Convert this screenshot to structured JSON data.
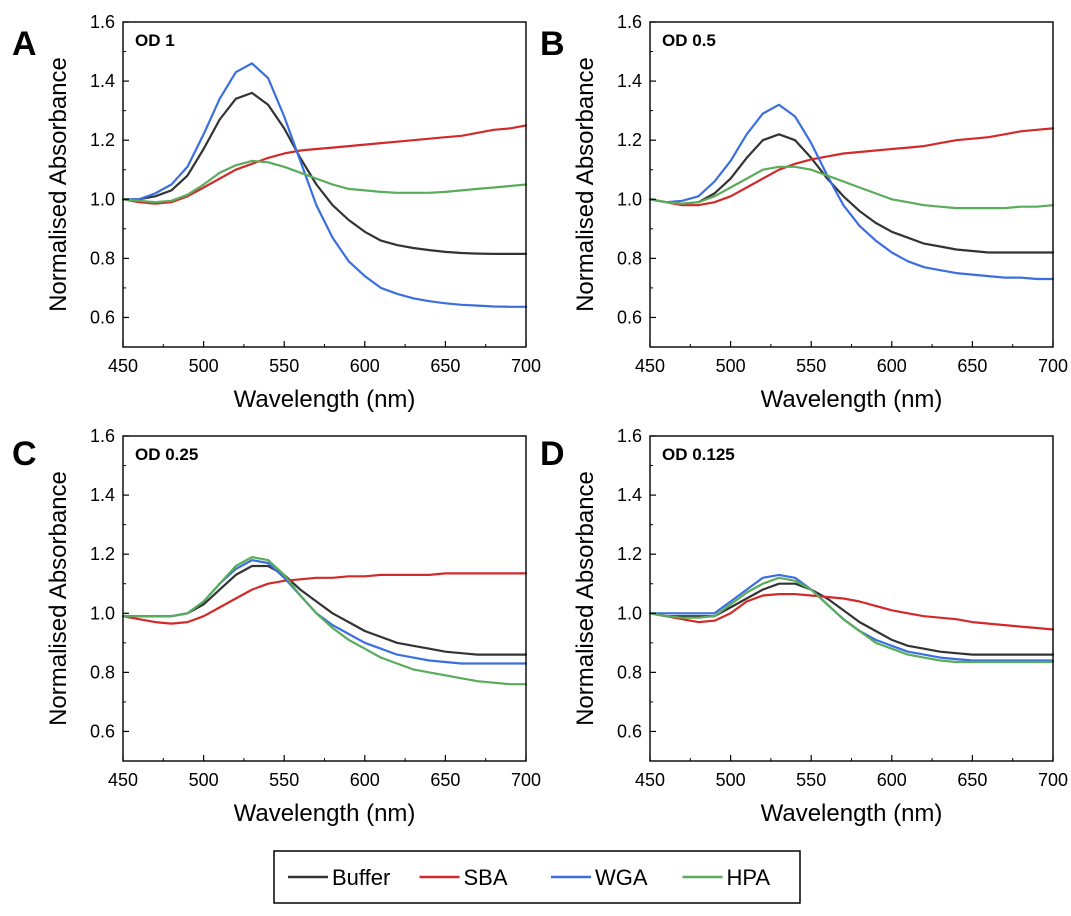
{
  "chart_data": [
    {
      "type": "line",
      "panel": "A",
      "annotation": "OD 1",
      "xlabel": "Wavelength (nm)",
      "ylabel": "Normalised Absorbance",
      "xlim": [
        450,
        700
      ],
      "ylim": [
        0.5,
        1.6
      ],
      "xticks": [
        450,
        500,
        550,
        600,
        650,
        700
      ],
      "yticks": [
        0.6,
        0.8,
        1.0,
        1.2,
        1.4,
        1.6
      ],
      "x": [
        450,
        460,
        470,
        480,
        490,
        500,
        510,
        520,
        530,
        540,
        550,
        560,
        570,
        580,
        590,
        600,
        610,
        620,
        630,
        640,
        650,
        660,
        670,
        680,
        690,
        700
      ],
      "series": [
        {
          "name": "Buffer",
          "values": [
            1.0,
            1.0,
            1.01,
            1.03,
            1.08,
            1.17,
            1.27,
            1.34,
            1.36,
            1.32,
            1.24,
            1.14,
            1.05,
            0.98,
            0.93,
            0.89,
            0.86,
            0.845,
            0.835,
            0.828,
            0.822,
            0.818,
            0.816,
            0.815,
            0.815,
            0.815
          ]
        },
        {
          "name": "SBA",
          "values": [
            1.0,
            0.99,
            0.985,
            0.99,
            1.01,
            1.04,
            1.07,
            1.1,
            1.12,
            1.14,
            1.155,
            1.165,
            1.17,
            1.175,
            1.18,
            1.185,
            1.19,
            1.195,
            1.2,
            1.205,
            1.21,
            1.215,
            1.225,
            1.235,
            1.24,
            1.25
          ]
        },
        {
          "name": "WGA",
          "values": [
            1.0,
            1.0,
            1.02,
            1.05,
            1.11,
            1.22,
            1.34,
            1.43,
            1.46,
            1.41,
            1.28,
            1.13,
            0.98,
            0.87,
            0.79,
            0.74,
            0.7,
            0.68,
            0.665,
            0.655,
            0.648,
            0.643,
            0.64,
            0.637,
            0.636,
            0.636
          ]
        },
        {
          "name": "HPA",
          "values": [
            1.0,
            0.995,
            0.99,
            0.995,
            1.015,
            1.05,
            1.09,
            1.115,
            1.13,
            1.125,
            1.11,
            1.09,
            1.07,
            1.05,
            1.035,
            1.03,
            1.025,
            1.022,
            1.022,
            1.022,
            1.025,
            1.03,
            1.035,
            1.04,
            1.045,
            1.05
          ]
        }
      ]
    },
    {
      "type": "line",
      "panel": "B",
      "annotation": "OD 0.5",
      "xlabel": "Wavelength (nm)",
      "ylabel": "Normalised Absorbance",
      "xlim": [
        450,
        700
      ],
      "ylim": [
        0.5,
        1.6
      ],
      "xticks": [
        450,
        500,
        550,
        600,
        650,
        700
      ],
      "yticks": [
        0.6,
        0.8,
        1.0,
        1.2,
        1.4,
        1.6
      ],
      "x": [
        450,
        460,
        470,
        480,
        490,
        500,
        510,
        520,
        530,
        540,
        550,
        560,
        570,
        580,
        590,
        600,
        610,
        620,
        630,
        640,
        650,
        660,
        670,
        680,
        690,
        700
      ],
      "series": [
        {
          "name": "Buffer",
          "values": [
            1.0,
            0.99,
            0.985,
            0.99,
            1.02,
            1.07,
            1.14,
            1.2,
            1.22,
            1.2,
            1.14,
            1.07,
            1.01,
            0.96,
            0.92,
            0.89,
            0.87,
            0.85,
            0.84,
            0.83,
            0.825,
            0.82,
            0.82,
            0.82,
            0.82,
            0.82
          ]
        },
        {
          "name": "SBA",
          "values": [
            1.0,
            0.99,
            0.98,
            0.98,
            0.99,
            1.01,
            1.04,
            1.07,
            1.1,
            1.12,
            1.135,
            1.145,
            1.155,
            1.16,
            1.165,
            1.17,
            1.175,
            1.18,
            1.19,
            1.2,
            1.205,
            1.21,
            1.22,
            1.23,
            1.235,
            1.24
          ]
        },
        {
          "name": "WGA",
          "values": [
            1.0,
            0.99,
            0.995,
            1.01,
            1.06,
            1.13,
            1.22,
            1.29,
            1.32,
            1.28,
            1.19,
            1.08,
            0.98,
            0.91,
            0.86,
            0.82,
            0.79,
            0.77,
            0.76,
            0.75,
            0.745,
            0.74,
            0.735,
            0.735,
            0.73,
            0.73
          ]
        },
        {
          "name": "HPA",
          "values": [
            1.0,
            0.99,
            0.985,
            0.99,
            1.01,
            1.04,
            1.07,
            1.1,
            1.11,
            1.11,
            1.1,
            1.08,
            1.06,
            1.04,
            1.02,
            1.0,
            0.99,
            0.98,
            0.975,
            0.97,
            0.97,
            0.97,
            0.97,
            0.975,
            0.975,
            0.98
          ]
        }
      ]
    },
    {
      "type": "line",
      "panel": "C",
      "annotation": "OD 0.25",
      "xlabel": "Wavelength (nm)",
      "ylabel": "Normalised Absorbance",
      "xlim": [
        450,
        700
      ],
      "ylim": [
        0.5,
        1.6
      ],
      "xticks": [
        450,
        500,
        550,
        600,
        650,
        700
      ],
      "yticks": [
        0.6,
        0.8,
        1.0,
        1.2,
        1.4,
        1.6
      ],
      "x": [
        450,
        460,
        470,
        480,
        490,
        500,
        510,
        520,
        530,
        540,
        550,
        560,
        570,
        580,
        590,
        600,
        610,
        620,
        630,
        640,
        650,
        660,
        670,
        680,
        690,
        700
      ],
      "series": [
        {
          "name": "Buffer",
          "values": [
            0.99,
            0.99,
            0.99,
            0.99,
            1.0,
            1.03,
            1.08,
            1.13,
            1.16,
            1.16,
            1.13,
            1.08,
            1.04,
            1.0,
            0.97,
            0.94,
            0.92,
            0.9,
            0.89,
            0.88,
            0.87,
            0.865,
            0.86,
            0.86,
            0.86,
            0.86
          ]
        },
        {
          "name": "SBA",
          "values": [
            0.99,
            0.98,
            0.97,
            0.965,
            0.97,
            0.99,
            1.02,
            1.05,
            1.08,
            1.1,
            1.11,
            1.115,
            1.12,
            1.12,
            1.125,
            1.125,
            1.13,
            1.13,
            1.13,
            1.13,
            1.135,
            1.135,
            1.135,
            1.135,
            1.135,
            1.135
          ]
        },
        {
          "name": "WGA",
          "values": [
            0.99,
            0.99,
            0.99,
            0.99,
            1.0,
            1.04,
            1.1,
            1.15,
            1.18,
            1.17,
            1.12,
            1.06,
            1.0,
            0.96,
            0.93,
            0.9,
            0.88,
            0.86,
            0.85,
            0.84,
            0.835,
            0.83,
            0.83,
            0.83,
            0.83,
            0.83
          ]
        },
        {
          "name": "HPA",
          "values": [
            0.99,
            0.99,
            0.99,
            0.99,
            1.0,
            1.04,
            1.1,
            1.16,
            1.19,
            1.18,
            1.13,
            1.06,
            1.0,
            0.95,
            0.91,
            0.88,
            0.85,
            0.83,
            0.81,
            0.8,
            0.79,
            0.78,
            0.77,
            0.765,
            0.76,
            0.76
          ]
        }
      ]
    },
    {
      "type": "line",
      "panel": "D",
      "annotation": "OD 0.125",
      "xlabel": "Wavelength (nm)",
      "ylabel": "Normalised Absorbance",
      "xlim": [
        450,
        700
      ],
      "ylim": [
        0.5,
        1.6
      ],
      "xticks": [
        450,
        500,
        550,
        600,
        650,
        700
      ],
      "yticks": [
        0.6,
        0.8,
        1.0,
        1.2,
        1.4,
        1.6
      ],
      "x": [
        450,
        460,
        470,
        480,
        490,
        500,
        510,
        520,
        530,
        540,
        550,
        560,
        570,
        580,
        590,
        600,
        610,
        620,
        630,
        640,
        650,
        660,
        670,
        680,
        690,
        700
      ],
      "series": [
        {
          "name": "Buffer",
          "values": [
            1.0,
            0.99,
            0.99,
            0.99,
            0.99,
            1.02,
            1.05,
            1.08,
            1.1,
            1.1,
            1.08,
            1.05,
            1.01,
            0.97,
            0.94,
            0.91,
            0.89,
            0.88,
            0.87,
            0.865,
            0.86,
            0.86,
            0.86,
            0.86,
            0.86,
            0.86
          ]
        },
        {
          "name": "SBA",
          "values": [
            1.0,
            0.99,
            0.98,
            0.97,
            0.975,
            1.0,
            1.04,
            1.06,
            1.065,
            1.065,
            1.06,
            1.055,
            1.05,
            1.04,
            1.025,
            1.01,
            1.0,
            0.99,
            0.985,
            0.98,
            0.97,
            0.965,
            0.96,
            0.955,
            0.95,
            0.945
          ]
        },
        {
          "name": "WGA",
          "values": [
            1.0,
            1.0,
            1.0,
            1.0,
            1.0,
            1.04,
            1.08,
            1.12,
            1.13,
            1.12,
            1.08,
            1.03,
            0.98,
            0.94,
            0.91,
            0.89,
            0.87,
            0.86,
            0.85,
            0.845,
            0.84,
            0.84,
            0.84,
            0.84,
            0.84,
            0.84
          ]
        },
        {
          "name": "HPA",
          "values": [
            1.0,
            0.99,
            0.985,
            0.985,
            0.99,
            1.03,
            1.07,
            1.1,
            1.12,
            1.11,
            1.08,
            1.03,
            0.98,
            0.94,
            0.9,
            0.88,
            0.86,
            0.85,
            0.84,
            0.835,
            0.835,
            0.835,
            0.835,
            0.835,
            0.835,
            0.835
          ]
        }
      ]
    }
  ],
  "legend": {
    "placement": "bottom-center",
    "entries": [
      {
        "label": "Buffer",
        "color": "#333333"
      },
      {
        "label": "SBA",
        "color": "#d22a2a"
      },
      {
        "label": "WGA",
        "color": "#3b6fe0"
      },
      {
        "label": "HPA",
        "color": "#5aab5a"
      }
    ]
  }
}
